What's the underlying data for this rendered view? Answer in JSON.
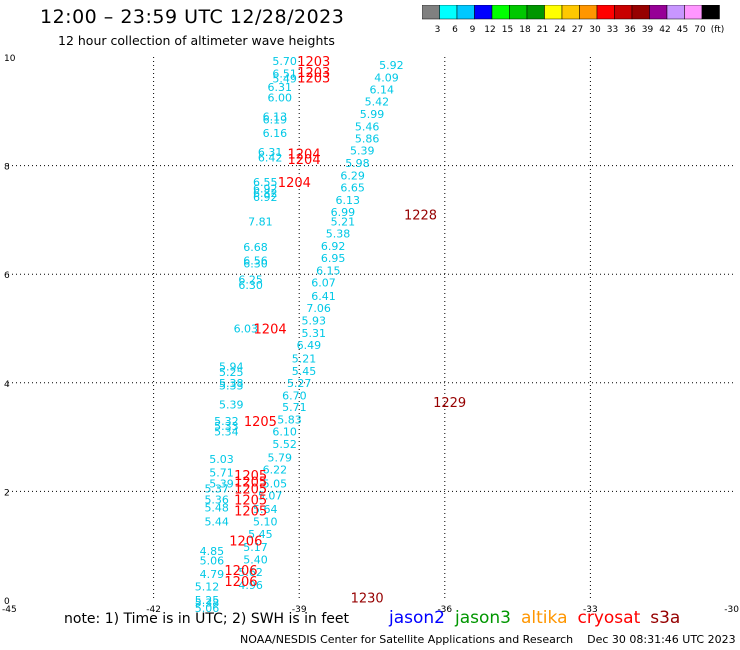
{
  "header": {
    "title": "12:00 – 23:59 UTC 12/28/2023",
    "subtitle": "12 hour collection of altimeter wave heights"
  },
  "legend_scale": {
    "labels": [
      "3",
      "6",
      "9",
      "12",
      "15",
      "18",
      "21",
      "24",
      "27",
      "30",
      "33",
      "36",
      "39",
      "42",
      "45",
      "70",
      "(ft)"
    ],
    "colors": [
      "#808080",
      "#00ffff",
      "#00c8ff",
      "#0000ff",
      "#00ff00",
      "#00c800",
      "#009600",
      "#ffff00",
      "#ffc800",
      "#ff9600",
      "#ff0000",
      "#c80000",
      "#960000",
      "#960096",
      "#c896ff",
      "#ff96ff",
      "#000000"
    ]
  },
  "footer": {
    "note": "note:  1) Time is in UTC;  2) SWH is in feet",
    "credit": "NOAA/NESDIS Center for Satellite Applications and Research    Dec 30 08:31:46 UTC 2023"
  },
  "satellites": [
    {
      "name": "jason2",
      "color": "#0000ff"
    },
    {
      "name": "jason3",
      "color": "#009600"
    },
    {
      "name": "altika",
      "color": "#ff9600"
    },
    {
      "name": "cryosat",
      "color": "#ff0000"
    },
    {
      "name": "s3a",
      "color": "#960000"
    }
  ],
  "chart_data": {
    "type": "scatter",
    "xlim": [
      -45,
      -30
    ],
    "ylim": [
      0,
      10
    ],
    "xticks": [
      "-45",
      "-42",
      "-39",
      "-36",
      "-33",
      "-30"
    ],
    "yticks": [
      "0",
      "2",
      "4",
      "6",
      "8",
      "10"
    ],
    "grid": true,
    "colors": {
      "swh": "#00c8e6",
      "time_cryosat": "#ff0000",
      "time_s3a": "#960000"
    },
    "swh_labels": [
      {
        "x": -39.3,
        "y": 9.93,
        "t": "5.70"
      },
      {
        "x": -39.3,
        "y": 9.7,
        "t": "6.51"
      },
      {
        "x": -39.3,
        "y": 9.6,
        "t": "5.49"
      },
      {
        "x": -39.4,
        "y": 9.45,
        "t": "6.31"
      },
      {
        "x": -39.4,
        "y": 9.25,
        "t": "6.00"
      },
      {
        "x": -39.5,
        "y": 8.9,
        "t": "6.13"
      },
      {
        "x": -39.5,
        "y": 8.85,
        "t": "6.19"
      },
      {
        "x": -39.5,
        "y": 8.6,
        "t": "6.16"
      },
      {
        "x": -39.6,
        "y": 8.25,
        "t": "6.31"
      },
      {
        "x": -39.6,
        "y": 8.15,
        "t": "6.42"
      },
      {
        "x": -39.7,
        "y": 7.7,
        "t": "6.55"
      },
      {
        "x": -39.7,
        "y": 7.58,
        "t": "6.92"
      },
      {
        "x": -39.7,
        "y": 7.5,
        "t": "6.82"
      },
      {
        "x": -39.7,
        "y": 7.42,
        "t": "6.92"
      },
      {
        "x": -39.8,
        "y": 6.97,
        "t": "7.81"
      },
      {
        "x": -39.9,
        "y": 6.5,
        "t": "6.68"
      },
      {
        "x": -39.9,
        "y": 6.25,
        "t": "6.56"
      },
      {
        "x": -39.9,
        "y": 6.2,
        "t": "6.30"
      },
      {
        "x": -40.0,
        "y": 5.9,
        "t": "6.25"
      },
      {
        "x": -40.0,
        "y": 5.8,
        "t": "6.30"
      },
      {
        "x": -40.1,
        "y": 5.0,
        "t": "6.03"
      },
      {
        "x": -40.4,
        "y": 4.3,
        "t": "5.94"
      },
      {
        "x": -40.4,
        "y": 4.2,
        "t": "5.25"
      },
      {
        "x": -40.4,
        "y": 4.0,
        "t": "5.38"
      },
      {
        "x": -40.4,
        "y": 3.95,
        "t": "5.33"
      },
      {
        "x": -40.4,
        "y": 3.6,
        "t": "5.39"
      },
      {
        "x": -40.5,
        "y": 3.3,
        "t": "5.32"
      },
      {
        "x": -40.5,
        "y": 3.2,
        "t": "5.33"
      },
      {
        "x": -40.5,
        "y": 3.1,
        "t": "5.34"
      },
      {
        "x": -40.6,
        "y": 2.6,
        "t": "5.03"
      },
      {
        "x": -40.6,
        "y": 2.35,
        "t": "5.71"
      },
      {
        "x": -40.6,
        "y": 2.15,
        "t": "5.39"
      },
      {
        "x": -40.7,
        "y": 2.05,
        "t": "5.37"
      },
      {
        "x": -40.7,
        "y": 1.85,
        "t": "5.36"
      },
      {
        "x": -40.7,
        "y": 1.7,
        "t": "5.48"
      },
      {
        "x": -40.7,
        "y": 1.45,
        "t": "5.44"
      },
      {
        "x": -40.8,
        "y": 0.9,
        "t": "4.85"
      },
      {
        "x": -40.8,
        "y": 0.73,
        "t": "5.06"
      },
      {
        "x": -40.8,
        "y": 0.48,
        "t": "4.79"
      },
      {
        "x": -40.9,
        "y": 0.25,
        "t": "5.12"
      },
      {
        "x": -40.9,
        "y": 0.0,
        "t": "5.25"
      },
      {
        "x": -40.9,
        "y": -0.05,
        "t": "5.38"
      },
      {
        "x": -40.9,
        "y": -0.15,
        "t": "5.06"
      },
      {
        "x": -37.1,
        "y": 9.85,
        "t": "5.92"
      },
      {
        "x": -37.2,
        "y": 9.62,
        "t": "4.09"
      },
      {
        "x": -37.3,
        "y": 9.4,
        "t": "6.14"
      },
      {
        "x": -37.4,
        "y": 9.18,
        "t": "5.42"
      },
      {
        "x": -37.5,
        "y": 8.95,
        "t": "5.99"
      },
      {
        "x": -37.6,
        "y": 8.72,
        "t": "5.46"
      },
      {
        "x": -37.6,
        "y": 8.5,
        "t": "5.86"
      },
      {
        "x": -37.7,
        "y": 8.28,
        "t": "5.39"
      },
      {
        "x": -37.8,
        "y": 8.05,
        "t": "5.98"
      },
      {
        "x": -37.9,
        "y": 7.82,
        "t": "6.29"
      },
      {
        "x": -37.9,
        "y": 7.6,
        "t": "6.65"
      },
      {
        "x": -38.0,
        "y": 7.37,
        "t": "6.13"
      },
      {
        "x": -38.1,
        "y": 7.15,
        "t": "6.99"
      },
      {
        "x": -38.1,
        "y": 6.97,
        "t": "5.21"
      },
      {
        "x": -38.2,
        "y": 6.75,
        "t": "5.38"
      },
      {
        "x": -38.3,
        "y": 6.52,
        "t": "6.92"
      },
      {
        "x": -38.3,
        "y": 6.3,
        "t": "6.95"
      },
      {
        "x": -38.4,
        "y": 6.07,
        "t": "6.15"
      },
      {
        "x": -38.5,
        "y": 5.85,
        "t": "6.07"
      },
      {
        "x": -38.5,
        "y": 5.6,
        "t": "6.41"
      },
      {
        "x": -38.6,
        "y": 5.38,
        "t": "7.06"
      },
      {
        "x": -38.7,
        "y": 5.15,
        "t": "5.93"
      },
      {
        "x": -38.7,
        "y": 4.92,
        "t": "5.31"
      },
      {
        "x": -38.8,
        "y": 4.7,
        "t": "6.49"
      },
      {
        "x": -38.9,
        "y": 4.45,
        "t": "5.21"
      },
      {
        "x": -38.9,
        "y": 4.22,
        "t": "5.45"
      },
      {
        "x": -39.0,
        "y": 4.0,
        "t": "5.27"
      },
      {
        "x": -39.1,
        "y": 3.77,
        "t": "6.70"
      },
      {
        "x": -39.1,
        "y": 3.55,
        "t": "5.71"
      },
      {
        "x": -39.2,
        "y": 3.32,
        "t": "5.83"
      },
      {
        "x": -39.3,
        "y": 3.1,
        "t": "6.10"
      },
      {
        "x": -39.3,
        "y": 2.87,
        "t": "5.52"
      },
      {
        "x": -39.4,
        "y": 2.62,
        "t": "5.79"
      },
      {
        "x": -39.5,
        "y": 2.4,
        "t": "6.22"
      },
      {
        "x": -39.5,
        "y": 2.15,
        "t": "5.05"
      },
      {
        "x": -39.6,
        "y": 1.92,
        "t": "5.07"
      },
      {
        "x": -39.7,
        "y": 1.68,
        "t": "5.64"
      },
      {
        "x": -39.7,
        "y": 1.45,
        "t": "5.10"
      },
      {
        "x": -39.8,
        "y": 1.22,
        "t": "5.45"
      },
      {
        "x": -39.9,
        "y": 0.98,
        "t": "5.17"
      },
      {
        "x": -39.9,
        "y": 0.75,
        "t": "5.40"
      },
      {
        "x": -40.0,
        "y": 0.52,
        "t": "5.62"
      },
      {
        "x": -40.0,
        "y": 0.28,
        "t": "4.96"
      }
    ],
    "time_labels": [
      {
        "x": -38.7,
        "y": 9.93,
        "t": "1203",
        "sat": "cryosat"
      },
      {
        "x": -38.7,
        "y": 9.72,
        "t": "1203",
        "sat": "cryosat"
      },
      {
        "x": -38.7,
        "y": 9.62,
        "t": "1203",
        "sat": "cryosat"
      },
      {
        "x": -38.9,
        "y": 8.22,
        "t": "1204",
        "sat": "cryosat"
      },
      {
        "x": -38.9,
        "y": 8.12,
        "t": "1204",
        "sat": "cryosat"
      },
      {
        "x": -39.1,
        "y": 7.7,
        "t": "1204",
        "sat": "cryosat"
      },
      {
        "x": -39.6,
        "y": 5.0,
        "t": "1204",
        "sat": "cryosat"
      },
      {
        "x": -39.8,
        "y": 3.3,
        "t": "1205",
        "sat": "cryosat"
      },
      {
        "x": -40.0,
        "y": 2.3,
        "t": "1205",
        "sat": "cryosat"
      },
      {
        "x": -40.0,
        "y": 2.18,
        "t": "1205",
        "sat": "cryosat"
      },
      {
        "x": -40.0,
        "y": 2.05,
        "t": "1205",
        "sat": "cryosat"
      },
      {
        "x": -40.0,
        "y": 1.85,
        "t": "1205",
        "sat": "cryosat"
      },
      {
        "x": -40.0,
        "y": 1.65,
        "t": "1205",
        "sat": "cryosat"
      },
      {
        "x": -40.1,
        "y": 1.1,
        "t": "1206",
        "sat": "cryosat"
      },
      {
        "x": -40.2,
        "y": 0.55,
        "t": "1206",
        "sat": "cryosat"
      },
      {
        "x": -40.2,
        "y": 0.35,
        "t": "1206",
        "sat": "cryosat"
      },
      {
        "x": -36.5,
        "y": 7.1,
        "t": "1228",
        "sat": "s3a"
      },
      {
        "x": -35.9,
        "y": 3.65,
        "t": "1229",
        "sat": "s3a"
      },
      {
        "x": -37.6,
        "y": 0.05,
        "t": "1230",
        "sat": "s3a"
      }
    ]
  }
}
